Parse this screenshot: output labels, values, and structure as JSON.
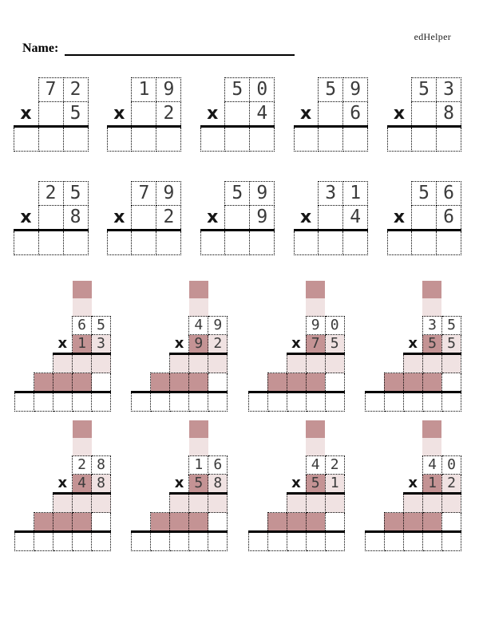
{
  "brand": "edHelper",
  "name_label": "Name:",
  "multiply_symbol": "x",
  "colors": {
    "carry_dark": "#C49394",
    "carry_light": "#F0E2E2",
    "digit": "#3B3B3B",
    "rule_line": "#000000"
  },
  "single_digit_rows": [
    {
      "problems": [
        {
          "multiplicand": "72",
          "multiplier": "5"
        },
        {
          "multiplicand": "19",
          "multiplier": "2"
        },
        {
          "multiplicand": "50",
          "multiplier": "4"
        },
        {
          "multiplicand": "59",
          "multiplier": "6"
        },
        {
          "multiplicand": "53",
          "multiplier": "8"
        }
      ]
    },
    {
      "problems": [
        {
          "multiplicand": "25",
          "multiplier": "8"
        },
        {
          "multiplicand": "79",
          "multiplier": "2"
        },
        {
          "multiplicand": "59",
          "multiplier": "9"
        },
        {
          "multiplicand": "31",
          "multiplier": "4"
        },
        {
          "multiplicand": "56",
          "multiplier": "6"
        }
      ]
    }
  ],
  "two_digit_rows": [
    {
      "problems": [
        {
          "multiplicand": "65",
          "multiplier": "13"
        },
        {
          "multiplicand": "49",
          "multiplier": "92"
        },
        {
          "multiplicand": "90",
          "multiplier": "75"
        },
        {
          "multiplicand": "35",
          "multiplier": "55"
        }
      ]
    },
    {
      "problems": [
        {
          "multiplicand": "28",
          "multiplier": "48"
        },
        {
          "multiplicand": "16",
          "multiplier": "58"
        },
        {
          "multiplicand": "42",
          "multiplier": "51"
        },
        {
          "multiplicand": "40",
          "multiplier": "12"
        }
      ]
    }
  ]
}
